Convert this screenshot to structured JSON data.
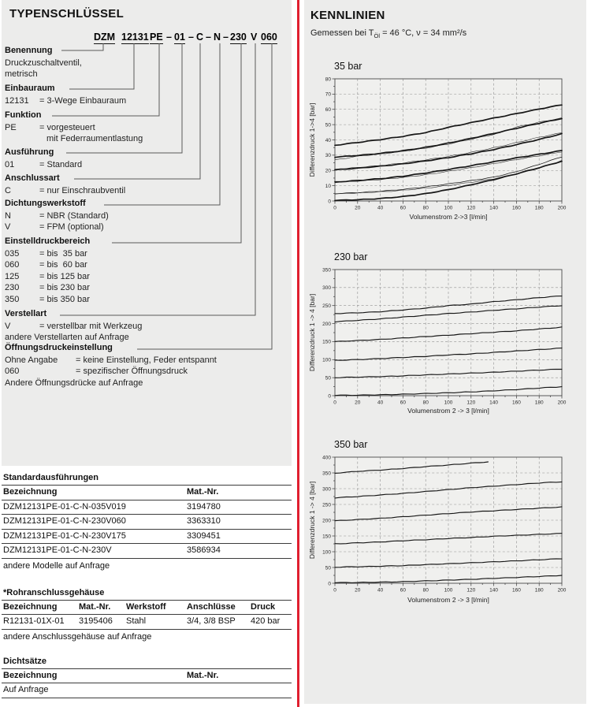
{
  "page": {
    "panel_bg": "#ececeb",
    "plot_bg": "#f0f0ee",
    "divider_color": "#e01f2f",
    "curve_color": "#161616",
    "grid_color": "#909090"
  },
  "typenschluessel": {
    "heading": "TYPENSCHLÜSSEL",
    "code_tokens": [
      {
        "t": "DZM",
        "u": true
      },
      {
        "t": "12131",
        "u": true
      },
      {
        "t": "PE",
        "u": true
      },
      {
        "t": "–",
        "u": false
      },
      {
        "t": "01",
        "u": true
      },
      {
        "t": "–",
        "u": false
      },
      {
        "t": "C",
        "u": false
      },
      {
        "t": "–",
        "u": false
      },
      {
        "t": "N",
        "u": false
      },
      {
        "t": "–",
        "u": false
      },
      {
        "t": "230",
        "u": true
      },
      {
        "t": "V",
        "u": false
      },
      {
        "t": "060",
        "u": true
      }
    ],
    "sections": [
      {
        "title": "Benennung",
        "key_width": 0,
        "items": [
          {
            "k": "",
            "v": "Druckzuschaltventil,"
          },
          {
            "k": "",
            "v": "metrisch"
          }
        ]
      },
      {
        "title": "Einbauraum",
        "key_width": 44,
        "items": [
          {
            "k": "12131",
            "v": "= 3-Wege Einbauraum"
          }
        ]
      },
      {
        "title": "Funktion",
        "key_width": 44,
        "items": [
          {
            "k": "PE",
            "v": "= vorgesteuert"
          },
          {
            "k": "",
            "v": "mit Federraumentlastung",
            "pad": 53
          }
        ]
      },
      {
        "title": "Ausführung",
        "key_width": 44,
        "items": [
          {
            "k": "01",
            "v": "= Standard"
          }
        ]
      },
      {
        "title": "Anschlussart",
        "key_width": 44,
        "items": [
          {
            "k": "C",
            "v": "= nur Einschraubventil"
          }
        ]
      },
      {
        "title": "Dichtungswerkstoff",
        "key_width": 44,
        "items": [
          {
            "k": "N",
            "v": "= NBR (Standard)"
          },
          {
            "k": "V",
            "v": "= FPM (optional)"
          }
        ]
      },
      {
        "title": "Einstelldruckbereich",
        "key_width": 44,
        "items": [
          {
            "k": "035",
            "v": "= bis  35 bar"
          },
          {
            "k": "060",
            "v": "= bis  60 bar"
          },
          {
            "k": "125",
            "v": "= bis 125 bar"
          },
          {
            "k": "230",
            "v": "= bis 230 bar"
          },
          {
            "k": "350",
            "v": "= bis 350 bar"
          }
        ]
      },
      {
        "title": "Verstellart",
        "key_width": 44,
        "items": [
          {
            "k": "V",
            "v": "= verstellbar mit Werkzeug"
          },
          {
            "k": "",
            "v": "andere Verstellarten auf Anfrage"
          }
        ]
      },
      {
        "title": "Öffnungsdruckeinstellung",
        "key_width": 90,
        "items": [
          {
            "k": "Ohne Angabe",
            "v": "= keine Einstellung, Feder entspannt"
          },
          {
            "k": "060",
            "v": "= spezifischer Öffnungsdruck"
          },
          {
            "k": "",
            "v": "Andere Öffnungsdrücke auf Anfrage"
          }
        ]
      }
    ]
  },
  "tables": [
    {
      "id": "standard",
      "title": "Standardausführungen",
      "col_headers": [
        "Bezeichnung",
        "Mat.-Nr."
      ],
      "rows": [
        [
          "DZM12131PE-01-C-N-035V019",
          "3194780"
        ],
        [
          "DZM12131PE-01-C-N-230V060",
          "3363310"
        ],
        [
          "DZM12131PE-01-C-N-230V175",
          "3309451"
        ],
        [
          "DZM12131PE-01-C-N-230V",
          "3586934"
        ]
      ],
      "footer": "andere Modelle auf Anfrage"
    },
    {
      "id": "rohranschluss",
      "title": "*Rohranschlussgehäuse",
      "col_headers": [
        "Bezeichnung",
        "Mat.-Nr.",
        "Werkstoff",
        "Anschlüsse",
        "Druck"
      ],
      "rows": [
        [
          "R12131-01X-01",
          "3195406",
          "Stahl",
          "3/4, 3/8 BSP",
          "420 bar"
        ]
      ],
      "footer": "andere Anschlussgehäuse auf Anfrage"
    },
    {
      "id": "dichtsaetze",
      "title": "Dichtsätze",
      "col_headers": [
        "Bezeichnung",
        "Mat.-Nr."
      ],
      "rows": [
        [
          "Auf Anfrage",
          ""
        ]
      ],
      "footer": ""
    }
  ],
  "kennlinien": {
    "heading": "KENNLINIEN",
    "subtitle_prefix": "Gemessen bei T",
    "subtitle_sub": "Öl",
    "subtitle_rest": " = 46 °C, ν = 34 mm²/s"
  },
  "chart_data": [
    {
      "type": "line",
      "title": "35 bar",
      "xlabel": "Volumenstrom 2->3 [l/min]",
      "ylabel": "Differenzdruck 1->4 [bar]",
      "xlim": [
        0,
        200
      ],
      "ylim": [
        0,
        80
      ],
      "xtick_step": 20,
      "ytick_step": 10,
      "grid": true,
      "legend": false,
      "x": [
        0,
        20,
        40,
        60,
        80,
        100,
        120,
        140,
        160,
        180,
        200
      ],
      "series": [
        {
          "name": "einstellung-6",
          "weight": "thick",
          "values": [
            36.5,
            38.3,
            40.2,
            42.3,
            44.8,
            48.2,
            51.3,
            54.3,
            57.2,
            60.2,
            63
          ]
        },
        {
          "name": "einstellung-5",
          "weight": "thick",
          "values": [
            28.7,
            29.8,
            31.2,
            32.9,
            35.1,
            37.9,
            41.0,
            44.2,
            47.6,
            50.9,
            54
          ],
          "values2": [
            26.8,
            29.3,
            30.8,
            32.5,
            34.6,
            37.3,
            40.4,
            43.6,
            48.4,
            51.6,
            54.3
          ]
        },
        {
          "name": "einstellung-4",
          "weight": "thick",
          "values": [
            20.4,
            21.5,
            22.8,
            24.3,
            26.2,
            28.4,
            30.9,
            33.7,
            36.9,
            40.3,
            44
          ],
          "values2": [
            20.6,
            21.9,
            23.2,
            24.9,
            26.9,
            29.2,
            31.8,
            34.8,
            38.2,
            41.7,
            44.7
          ]
        },
        {
          "name": "einstellung-3",
          "weight": "thick",
          "values": [
            12.4,
            13.4,
            14.6,
            16.2,
            18.3,
            20.6,
            23.1,
            25.7,
            28.2,
            30.6,
            33
          ],
          "values2": [
            12.2,
            13.0,
            14.0,
            15.4,
            17.2,
            19.4,
            21.8,
            24.5,
            27.1,
            29.6,
            32.2
          ]
        },
        {
          "name": "einstellung-2",
          "weight": "thin",
          "values": [
            4.8,
            5.5,
            6.4,
            7.6,
            9.2,
            11.2,
            13.4,
            15.6,
            19.2,
            24.0,
            29
          ],
          "values2": [
            4.6,
            5.2,
            6.0,
            7.0,
            8.4,
            10.2,
            12.2,
            14.6,
            17.6,
            21.5,
            26.5
          ]
        },
        {
          "name": "einstellung-1",
          "weight": "thick",
          "values": [
            0.4,
            0.8,
            1.6,
            2.9,
            4.8,
            7.4,
            10.6,
            14.0,
            17.8,
            21.8,
            26
          ]
        }
      ]
    },
    {
      "type": "line",
      "title": "230 bar",
      "xlabel": "Volumenstrom 2 -> 3 [l/min]",
      "ylabel": "Differenzdruck 1 -> 4 [bar]",
      "xlim": [
        0,
        200
      ],
      "ylim": [
        0,
        350
      ],
      "xtick_step": 20,
      "ytick_step": 50,
      "grid": true,
      "legend": false,
      "x": [
        0,
        20,
        40,
        60,
        80,
        100,
        120,
        140,
        160,
        180,
        200
      ],
      "series": [
        {
          "name": "einstellung-6",
          "weight": "medium",
          "values": [
            228,
            230,
            233,
            238,
            243,
            250,
            254,
            261,
            266,
            272,
            277
          ]
        },
        {
          "name": "einstellung-5",
          "weight": "medium",
          "values": [
            205,
            209,
            213,
            218,
            223,
            228,
            232,
            237,
            241,
            246,
            250
          ]
        },
        {
          "name": "einstellung-4",
          "weight": "medium",
          "values": [
            150,
            153,
            156,
            160,
            164,
            168,
            172,
            176,
            180,
            185,
            190
          ]
        },
        {
          "name": "einstellung-3",
          "weight": "medium",
          "values": [
            98,
            100,
            103,
            106,
            109,
            113,
            116,
            120,
            124,
            128,
            132
          ]
        },
        {
          "name": "einstellung-2",
          "weight": "medium",
          "values": [
            50,
            51.5,
            53,
            55,
            57.5,
            60,
            62.5,
            65,
            68,
            71,
            74
          ]
        },
        {
          "name": "einstellung-1",
          "weight": "medium",
          "values": [
            1,
            1.5,
            2.5,
            4,
            6,
            8,
            10.5,
            13.5,
            17,
            21,
            25
          ]
        }
      ]
    },
    {
      "type": "line",
      "title": "350 bar",
      "xlabel": "Volumenstrom 2 -> 3 [l/min]",
      "ylabel": "Differenzdruck 1 -> 4 [bar]",
      "xlim": [
        0,
        200
      ],
      "ylim": [
        0,
        400
      ],
      "xtick_step": 20,
      "ytick_step": 50,
      "grid": true,
      "legend": false,
      "x": [
        0,
        20,
        40,
        60,
        80,
        100,
        120,
        140,
        160,
        180,
        200
      ],
      "series": [
        {
          "name": "einstellung-6",
          "weight": "medium",
          "x": [
            0,
            20,
            40,
            60,
            80,
            100,
            120,
            135
          ],
          "values": [
            349,
            355,
            359,
            364,
            370,
            375,
            381,
            385
          ]
        },
        {
          "name": "einstellung-5",
          "weight": "medium",
          "values": [
            271,
            275,
            280,
            285,
            291,
            297,
            303,
            308,
            313,
            318,
            322
          ]
        },
        {
          "name": "einstellung-4",
          "weight": "medium",
          "values": [
            198,
            202,
            206,
            211,
            216,
            221,
            226,
            230,
            234,
            238,
            242
          ]
        },
        {
          "name": "einstellung-3",
          "weight": "medium",
          "values": [
            125,
            128,
            131,
            135,
            138,
            142,
            145,
            149,
            152,
            155,
            158
          ]
        },
        {
          "name": "einstellung-2",
          "weight": "medium",
          "values": [
            51,
            52.5,
            54,
            56,
            59,
            62,
            65,
            68,
            71,
            74.5,
            78
          ]
        },
        {
          "name": "einstellung-1",
          "weight": "medium",
          "values": [
            2,
            2.5,
            3.5,
            5,
            7.5,
            10,
            12.5,
            15.5,
            18.5,
            21.5,
            25
          ]
        }
      ]
    }
  ]
}
